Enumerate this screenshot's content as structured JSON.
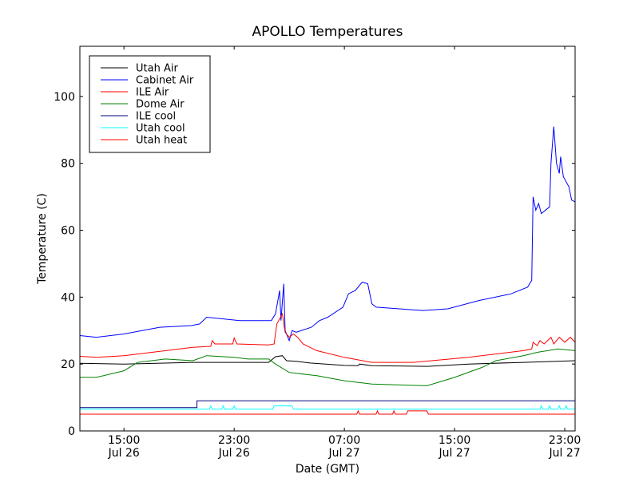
{
  "chart_data": {
    "type": "line",
    "title": "APOLLO Temperatures",
    "xlabel": "Date (GMT)",
    "ylabel": "Temperature (C)",
    "x_units": "hours since Jul 26 00:00 GMT",
    "xlim": [
      11.8,
      47.75
    ],
    "ylim": [
      0,
      115
    ],
    "grid": false,
    "legend_position": "top-left",
    "yticks": [
      {
        "value": 0,
        "label": "0"
      },
      {
        "value": 20,
        "label": "20"
      },
      {
        "value": 40,
        "label": "40"
      },
      {
        "value": 60,
        "label": "60"
      },
      {
        "value": 80,
        "label": "80"
      },
      {
        "value": 100,
        "label": "100"
      }
    ],
    "xticks": [
      {
        "value": 15,
        "label": "15:00",
        "sublabel": "Jul 26"
      },
      {
        "value": 23,
        "label": "23:00",
        "sublabel": "Jul 26"
      },
      {
        "value": 31,
        "label": "07:00",
        "sublabel": "Jul 27"
      },
      {
        "value": 39,
        "label": "15:00",
        "sublabel": "Jul 27"
      },
      {
        "value": 47,
        "label": "23:00",
        "sublabel": "Jul 27"
      }
    ],
    "series": [
      {
        "name": "Utah Air",
        "color": "#000000",
        "points": [
          [
            11.8,
            20.2
          ],
          [
            15,
            20
          ],
          [
            20,
            20.5
          ],
          [
            25.5,
            20.5
          ],
          [
            26,
            22.2
          ],
          [
            26.5,
            22.5
          ],
          [
            26.8,
            21
          ],
          [
            27.5,
            20.8
          ],
          [
            28.5,
            20.3
          ],
          [
            31,
            19.6
          ],
          [
            32,
            19.5
          ],
          [
            32.1,
            20
          ],
          [
            33,
            19.5
          ],
          [
            37,
            19.3
          ],
          [
            40,
            20
          ],
          [
            44,
            20.5
          ],
          [
            47.75,
            21
          ]
        ]
      },
      {
        "name": "Cabinet Air",
        "color": "#0000ff",
        "points": [
          [
            11.8,
            28.5
          ],
          [
            13,
            28
          ],
          [
            15,
            29
          ],
          [
            17.6,
            31
          ],
          [
            19.9,
            31.5
          ],
          [
            20.5,
            32
          ],
          [
            21,
            34
          ],
          [
            23.4,
            33
          ],
          [
            25.7,
            33
          ],
          [
            26,
            35
          ],
          [
            26.3,
            42
          ],
          [
            26.4,
            33
          ],
          [
            26.6,
            44
          ],
          [
            26.7,
            30
          ],
          [
            27,
            27
          ],
          [
            27.2,
            30
          ],
          [
            27.5,
            29.5
          ],
          [
            28.6,
            31
          ],
          [
            29.2,
            33
          ],
          [
            29.8,
            34
          ],
          [
            30.9,
            37
          ],
          [
            31.3,
            41
          ],
          [
            31.8,
            42
          ],
          [
            32.3,
            44.5
          ],
          [
            32.7,
            44
          ],
          [
            33,
            38
          ],
          [
            33.3,
            37
          ],
          [
            35,
            36.5
          ],
          [
            36.7,
            36
          ],
          [
            38.5,
            36.5
          ],
          [
            40.8,
            39
          ],
          [
            43.1,
            41
          ],
          [
            44.3,
            43
          ],
          [
            44.6,
            45
          ],
          [
            44.7,
            70
          ],
          [
            44.9,
            66
          ],
          [
            45.1,
            68
          ],
          [
            45.3,
            65
          ],
          [
            45.9,
            67
          ],
          [
            46,
            80
          ],
          [
            46.2,
            91
          ],
          [
            46.4,
            80
          ],
          [
            46.6,
            77
          ],
          [
            46.7,
            82
          ],
          [
            46.9,
            76
          ],
          [
            47.3,
            73
          ],
          [
            47.5,
            69
          ],
          [
            47.75,
            68.5
          ]
        ]
      },
      {
        "name": "ILE Air",
        "color": "#ff0000",
        "points": [
          [
            11.8,
            22.3
          ],
          [
            13,
            22
          ],
          [
            15,
            22.5
          ],
          [
            20,
            25
          ],
          [
            21.3,
            25.3
          ],
          [
            21.4,
            27
          ],
          [
            21.6,
            26
          ],
          [
            22.9,
            26
          ],
          [
            23,
            27.8
          ],
          [
            23.2,
            26
          ],
          [
            25.5,
            25.7
          ],
          [
            25.9,
            26
          ],
          [
            26.1,
            32
          ],
          [
            26.5,
            35
          ],
          [
            26.7,
            29.5
          ],
          [
            27,
            28
          ],
          [
            27.3,
            29
          ],
          [
            27.6,
            28
          ],
          [
            28,
            26
          ],
          [
            29,
            24
          ],
          [
            31,
            22
          ],
          [
            33,
            20.5
          ],
          [
            36,
            20.5
          ],
          [
            40,
            22
          ],
          [
            44,
            24
          ],
          [
            44.6,
            24.5
          ],
          [
            44.7,
            26.5
          ],
          [
            45,
            25.5
          ],
          [
            45.2,
            27
          ],
          [
            45.5,
            26
          ],
          [
            46,
            28
          ],
          [
            46.2,
            26
          ],
          [
            46.6,
            28
          ],
          [
            47,
            26.5
          ],
          [
            47.4,
            28
          ],
          [
            47.75,
            26.5
          ]
        ]
      },
      {
        "name": "Dome Air",
        "color": "#008000",
        "points": [
          [
            11.8,
            16
          ],
          [
            13,
            16
          ],
          [
            15,
            18
          ],
          [
            16,
            20.5
          ],
          [
            18,
            21.5
          ],
          [
            20,
            21
          ],
          [
            21,
            22.5
          ],
          [
            23,
            22
          ],
          [
            24,
            21.5
          ],
          [
            25.5,
            21.5
          ],
          [
            26,
            20
          ],
          [
            27,
            17.5
          ],
          [
            29,
            16.5
          ],
          [
            31,
            15
          ],
          [
            33,
            14
          ],
          [
            37,
            13.5
          ],
          [
            39,
            16
          ],
          [
            41,
            19
          ],
          [
            42,
            21
          ],
          [
            44,
            22.5
          ],
          [
            45,
            23.5
          ],
          [
            46.5,
            24.5
          ],
          [
            47.75,
            24
          ]
        ]
      },
      {
        "name": "ILE cool",
        "color": "#000080",
        "points": [
          [
            11.8,
            7
          ],
          [
            20.3,
            7
          ],
          [
            20.3,
            9
          ],
          [
            47.75,
            9
          ]
        ]
      },
      {
        "name": "Utah cool",
        "color": "#00ffff",
        "points": [
          [
            11.8,
            6.5
          ],
          [
            21.2,
            6.5
          ],
          [
            21.3,
            7.5
          ],
          [
            21.4,
            6.5
          ],
          [
            22.1,
            6.5
          ],
          [
            22.2,
            7.5
          ],
          [
            22.3,
            6.5
          ],
          [
            22.9,
            6.5
          ],
          [
            23,
            7.5
          ],
          [
            23.1,
            6.5
          ],
          [
            25.8,
            6.5
          ],
          [
            25.9,
            7.5
          ],
          [
            27.2,
            7.5
          ],
          [
            27.3,
            6.5
          ],
          [
            45.2,
            6.5
          ],
          [
            45.3,
            7.5
          ],
          [
            45.4,
            6.5
          ],
          [
            45.8,
            6.5
          ],
          [
            45.9,
            7.5
          ],
          [
            46,
            6.5
          ],
          [
            46.5,
            6.5
          ],
          [
            46.6,
            7.5
          ],
          [
            46.7,
            6.5
          ],
          [
            47,
            6.5
          ],
          [
            47.1,
            7.5
          ],
          [
            47.2,
            6.5
          ],
          [
            47.75,
            6.5
          ]
        ]
      },
      {
        "name": "Utah heat",
        "color": "#ff0000",
        "points": [
          [
            11.8,
            5
          ],
          [
            31.9,
            5
          ],
          [
            32,
            6
          ],
          [
            32.1,
            5
          ],
          [
            33.3,
            5
          ],
          [
            33.4,
            6
          ],
          [
            33.5,
            5
          ],
          [
            34.5,
            5
          ],
          [
            34.6,
            6
          ],
          [
            34.7,
            5
          ],
          [
            35.5,
            5
          ],
          [
            35.6,
            6
          ],
          [
            37,
            6
          ],
          [
            37.1,
            5
          ],
          [
            47.75,
            5
          ]
        ]
      }
    ]
  }
}
